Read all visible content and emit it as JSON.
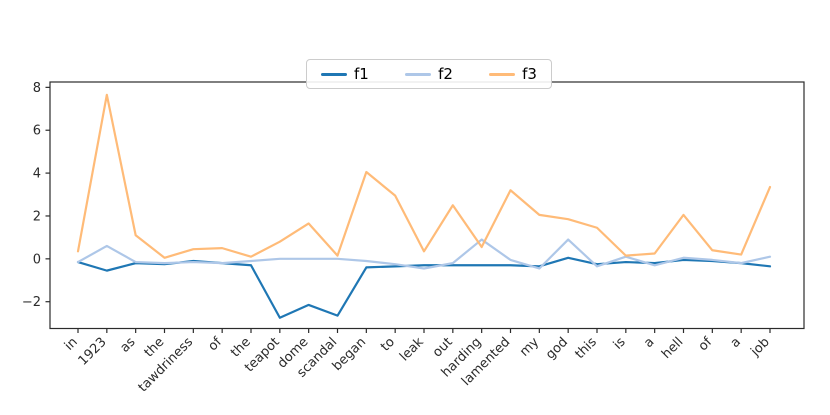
{
  "figure": {
    "background": "#ffffff",
    "axes_color": "#2b2b2b"
  },
  "legend": {
    "border_color": "#cccccc",
    "entries": [
      "f1",
      "f2",
      "f3"
    ]
  },
  "chart_data": {
    "type": "line",
    "title": "",
    "xlabel": "",
    "ylabel": "",
    "grid": false,
    "legend_position": "upper center",
    "xtick_rotation": 45,
    "ylim": [
      -3.25,
      8.25
    ],
    "yticks": [
      -2,
      0,
      2,
      4,
      6,
      8
    ],
    "ytick_labels": [
      "−2",
      "0",
      "2",
      "4",
      "6",
      "8"
    ],
    "categories": [
      "in",
      "1923",
      "as",
      "the",
      "tawdriness",
      "of",
      "the",
      "teapot",
      "dome",
      "scandal",
      "began",
      "to",
      "leak",
      "out",
      "harding",
      "lamented",
      "my",
      "god",
      "this",
      "is",
      "a",
      "hell",
      "of",
      "a",
      "job"
    ],
    "series": [
      {
        "name": "f1",
        "color": "#1f77b4",
        "values": [
          -0.15,
          -0.55,
          -0.2,
          -0.25,
          -0.1,
          -0.2,
          -0.3,
          -2.75,
          -2.15,
          -2.65,
          -0.4,
          -0.35,
          -0.3,
          -0.3,
          -0.3,
          -0.3,
          -0.35,
          0.05,
          -0.25,
          -0.15,
          -0.2,
          -0.05,
          -0.1,
          -0.2,
          -0.35
        ]
      },
      {
        "name": "f2",
        "color": "#aec7e8",
        "values": [
          -0.15,
          0.6,
          -0.15,
          -0.2,
          -0.15,
          -0.2,
          -0.1,
          0.0,
          0.0,
          0.0,
          -0.1,
          -0.25,
          -0.45,
          -0.2,
          0.9,
          -0.05,
          -0.45,
          0.9,
          -0.35,
          0.1,
          -0.3,
          0.05,
          -0.05,
          -0.2,
          0.1
        ]
      },
      {
        "name": "f3",
        "color": "#ffbb78",
        "values": [
          0.35,
          7.65,
          1.1,
          0.05,
          0.45,
          0.5,
          0.1,
          0.8,
          1.65,
          0.15,
          4.05,
          2.95,
          0.35,
          2.5,
          0.55,
          3.2,
          2.05,
          1.85,
          1.45,
          0.15,
          0.25,
          2.05,
          0.4,
          0.2,
          3.35
        ]
      }
    ]
  }
}
